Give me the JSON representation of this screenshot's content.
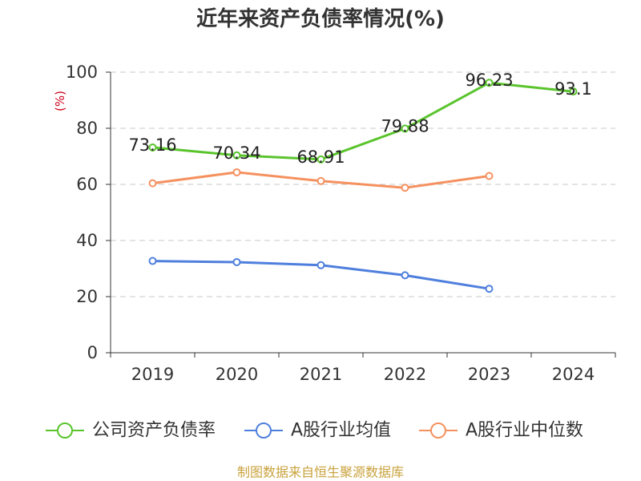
{
  "footer": "制图数据来自恒生聚源数据库",
  "chart_data": {
    "type": "line",
    "title": "近年来资产负债率情况(%)",
    "ylabel": "(%)",
    "categories": [
      "2019",
      "2020",
      "2021",
      "2022",
      "2023",
      "2024"
    ],
    "ylim": [
      0,
      100
    ],
    "yticks": [
      0,
      20,
      40,
      60,
      80,
      100
    ],
    "grid": true,
    "legend_position": "bottom",
    "series": [
      {
        "name": "公司资产负债率",
        "color": "#5ac42d",
        "data_labels": true,
        "values": [
          73.16,
          70.34,
          68.91,
          79.88,
          96.23,
          93.1
        ]
      },
      {
        "name": "A股行业均值",
        "color": "#4f7fdd",
        "data_labels": false,
        "values": [
          32.7,
          32.3,
          31.2,
          27.6,
          22.8,
          null
        ]
      },
      {
        "name": "A股行业中位数",
        "color": "#f5915f",
        "data_labels": false,
        "values": [
          60.4,
          64.3,
          61.2,
          58.8,
          63.0,
          null
        ]
      }
    ]
  }
}
